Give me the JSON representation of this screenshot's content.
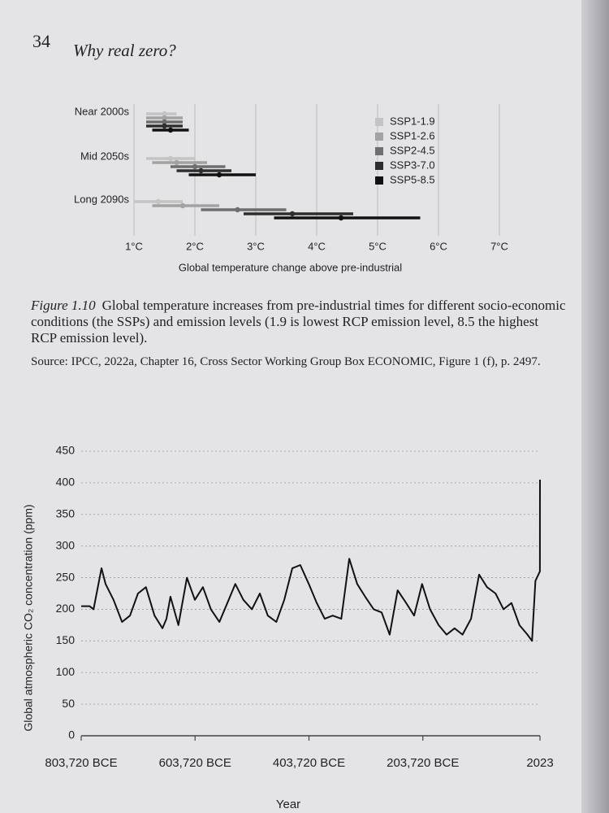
{
  "header": {
    "page_number": "34",
    "running_title": "Why real zero?"
  },
  "chart_data": [
    {
      "type": "range",
      "categories": [
        "Near 2000s",
        "Mid 2050s",
        "Long 2090s"
      ],
      "xlabel": "Global temperature change above pre-industrial",
      "xlim": [
        1,
        7.2
      ],
      "xticks": [
        {
          "value": 1,
          "label": "1°C"
        },
        {
          "value": 2,
          "label": "2°C"
        },
        {
          "value": 3,
          "label": "3°C"
        },
        {
          "value": 4,
          "label": "4°C"
        },
        {
          "value": 5,
          "label": "5°C"
        },
        {
          "value": 6,
          "label": "6°C"
        },
        {
          "value": 7,
          "label": "7°C"
        }
      ],
      "grid": true,
      "legend": "upper right",
      "series": [
        {
          "name": "SSP1-1.9",
          "color": "#c4c4c4",
          "median": [
            1.5,
            1.6,
            1.4
          ],
          "low": [
            1.2,
            1.2,
            1.0
          ],
          "high": [
            1.7,
            2.0,
            1.8
          ]
        },
        {
          "name": "SSP1-2.6",
          "color": "#a2a2a2",
          "median": [
            1.5,
            1.7,
            1.8
          ],
          "low": [
            1.2,
            1.3,
            1.3
          ],
          "high": [
            1.8,
            2.2,
            2.4
          ]
        },
        {
          "name": "SSP2-4.5",
          "color": "#6e6e6e",
          "median": [
            1.5,
            2.0,
            2.7
          ],
          "low": [
            1.2,
            1.6,
            2.1
          ],
          "high": [
            1.8,
            2.5,
            3.5
          ]
        },
        {
          "name": "SSP3-7.0",
          "color": "#2e2e2e",
          "median": [
            1.5,
            2.1,
            3.6
          ],
          "low": [
            1.2,
            1.7,
            2.8
          ],
          "high": [
            1.8,
            2.6,
            4.6
          ]
        },
        {
          "name": "SSP5-8.5",
          "color": "#111111",
          "median": [
            1.6,
            2.4,
            4.4
          ],
          "low": [
            1.3,
            1.9,
            3.3
          ],
          "high": [
            1.9,
            3.0,
            5.7
          ]
        }
      ]
    },
    {
      "type": "line",
      "ylabel": "Global atmospheric CO₂ concentration (ppm)",
      "xlabel": "Year",
      "ylim": [
        0,
        450
      ],
      "yticks": [
        0,
        50,
        100,
        150,
        200,
        250,
        300,
        350,
        400,
        450
      ],
      "grid": true,
      "xlim": [
        -803720,
        2023
      ],
      "xticks": [
        {
          "value": -803720,
          "label": "803,720 BCE"
        },
        {
          "value": -603720,
          "label": "603,720 BCE"
        },
        {
          "value": -403720,
          "label": "403,720 BCE"
        },
        {
          "value": -203720,
          "label": "203,720 BCE"
        },
        2023
      ],
      "color": "#111111",
      "x": [
        -803720,
        -789000,
        -782000,
        -768000,
        -761000,
        -747000,
        -732000,
        -718000,
        -704000,
        -690000,
        -675000,
        -661000,
        -654000,
        -647000,
        -633000,
        -618000,
        -604000,
        -590000,
        -576000,
        -561000,
        -547000,
        -533000,
        -519000,
        -504000,
        -490000,
        -476000,
        -461000,
        -447000,
        -433000,
        -419000,
        -404000,
        -390000,
        -376000,
        -362000,
        -347000,
        -333000,
        -319000,
        -305000,
        -290000,
        -276000,
        -262000,
        -248000,
        -233000,
        -219000,
        -205000,
        -191000,
        -176000,
        -162000,
        -148000,
        -134000,
        -119000,
        -105000,
        -91000,
        -76000,
        -62000,
        -48000,
        -34000,
        -20000,
        -12000,
        -6000,
        1900,
        2023
      ],
      "values": [
        205,
        205,
        200,
        265,
        240,
        215,
        180,
        190,
        225,
        235,
        190,
        170,
        185,
        220,
        175,
        250,
        215,
        235,
        200,
        180,
        210,
        240,
        215,
        200,
        225,
        190,
        180,
        215,
        265,
        270,
        240,
        210,
        185,
        190,
        185,
        280,
        240,
        220,
        200,
        195,
        160,
        230,
        210,
        190,
        240,
        200,
        175,
        160,
        170,
        160,
        185,
        255,
        235,
        225,
        200,
        210,
        175,
        160,
        150,
        245,
        260,
        405
      ]
    }
  ],
  "caption": {
    "label": "Figure 1.10",
    "text": "Global temperature increases from pre-industrial times for different socio-economic conditions (the SSPs) and emission levels (1.9 is lowest RCP emission level, 8.5 the highest RCP emission level)."
  },
  "source": "Source: IPCC, 2022a, Chapter 16, Cross Sector Working Group Box ECONOMIC, Figure 1 (f), p. 2497."
}
